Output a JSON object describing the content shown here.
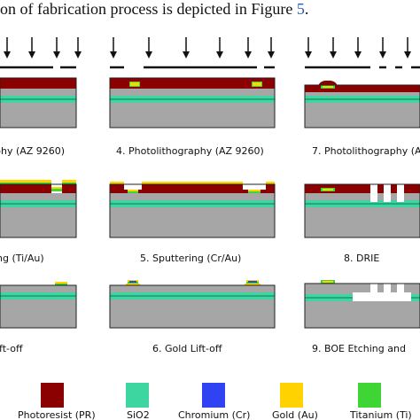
{
  "caption": {
    "text": "on of fabrication process is depicted in Figure ",
    "ref": "5",
    "end": "."
  },
  "colors": {
    "photoresist": "#8b0000",
    "sio2": "#3dd6a1",
    "chromium": "#2f43f2",
    "gold": "#ffd200",
    "titanium": "#3fd635",
    "silicon": "#a6a6a6",
    "outline": "#222222"
  },
  "steps": [
    {
      "label": "phy (AZ 9260)"
    },
    {
      "label": "4. Photolithography (AZ 9260)"
    },
    {
      "label": "7. Photolithography (A"
    },
    {
      "label": "ng (Ti/Au)"
    },
    {
      "label": "5. Sputtering (Cr/Au)"
    },
    {
      "label": "8. DRIE"
    },
    {
      "label": "ift-off"
    },
    {
      "label": "6. Gold Lift-off"
    },
    {
      "label": "9. BOE Etching and"
    }
  ],
  "legend": [
    {
      "label": "Photoresist (PR)",
      "color_key": "photoresist"
    },
    {
      "label": "SiO2",
      "color_key": "sio2"
    },
    {
      "label": "Chromium (Cr)",
      "color_key": "chromium"
    },
    {
      "label": "Gold (Au)",
      "color_key": "gold"
    },
    {
      "label": "Titanium (Ti)",
      "color_key": "titanium"
    }
  ]
}
